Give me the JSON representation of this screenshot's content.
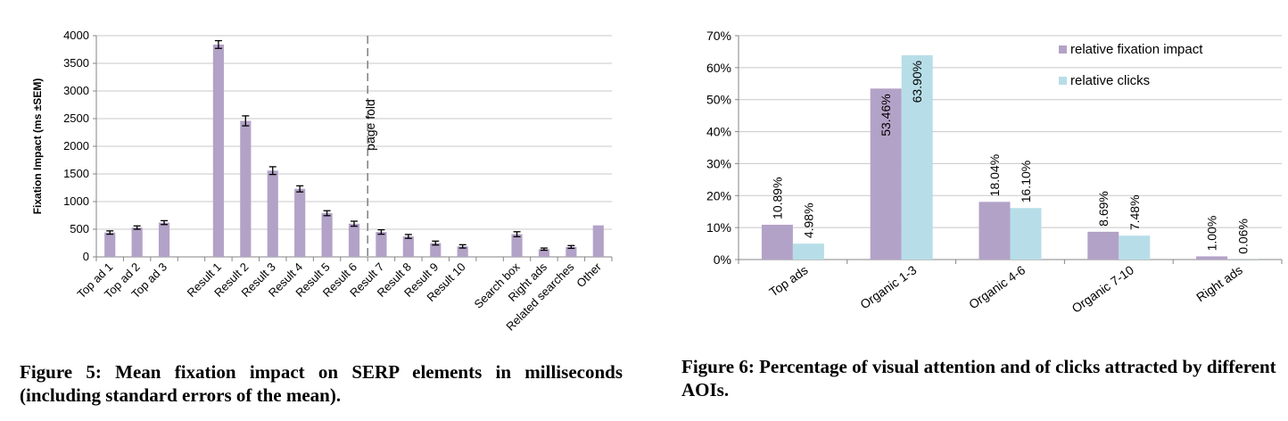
{
  "figures": {
    "fig5_caption": "Figure 5: Mean fixation impact on SERP elements in milliseconds (including standard errors of the mean).",
    "fig6_caption": "Figure 6: Percentage of visual attention and of clicks attracted by different AOIs."
  },
  "chart_data": [
    {
      "type": "bar",
      "ylabel": "Fixation Impact (ms ±SEM)",
      "ylim": [
        0,
        4000
      ],
      "yticks": [
        0,
        500,
        1000,
        1500,
        2000,
        2500,
        3000,
        3500,
        4000
      ],
      "grid": true,
      "categories": [
        "Top ad 1",
        "Top ad 2",
        "Top ad 3",
        "",
        "Result 1",
        "Result 2",
        "Result 3",
        "Result 4",
        "Result 5",
        "Result 6",
        "Result 7",
        "Result 8",
        "Result 9",
        "Result 10",
        "",
        "Search box",
        "Right ads",
        "Related searches",
        "Other"
      ],
      "values": [
        440,
        530,
        620,
        null,
        3840,
        2460,
        1560,
        1230,
        790,
        600,
        450,
        370,
        250,
        190,
        null,
        410,
        140,
        180,
        570
      ],
      "errors": [
        30,
        30,
        35,
        null,
        70,
        90,
        70,
        55,
        45,
        45,
        40,
        35,
        35,
        30,
        null,
        45,
        20,
        25,
        0
      ],
      "annotations": [
        {
          "text": "page fold",
          "between": [
            "Result 6",
            "Result 7"
          ]
        }
      ],
      "colors": {
        "bar": "#b3a2c7",
        "grid": "#c8c8c8",
        "axis": "#868686",
        "fold": "#7f7f7f"
      }
    },
    {
      "type": "bar",
      "ylim": [
        0,
        70
      ],
      "yticks": [
        0,
        10,
        20,
        30,
        40,
        50,
        60,
        70
      ],
      "ytick_suffix": "%",
      "grid": true,
      "legend": "top-right",
      "categories": [
        "Top ads",
        "Organic 1-3",
        "Organic 4-6",
        "Organic 7-10",
        "Right ads"
      ],
      "series": [
        {
          "name": "relative fixation impact",
          "values": [
            10.89,
            53.46,
            18.04,
            8.69,
            1.0
          ],
          "labels": [
            "10.89%",
            "53.46%",
            "18.04%",
            "8.69%",
            "1.00%"
          ],
          "color": "#b3a2c7"
        },
        {
          "name": "relative clicks",
          "values": [
            4.98,
            63.9,
            16.1,
            7.48,
            0.06
          ],
          "labels": [
            "4.98%",
            "63.90%",
            "16.10%",
            "7.48%",
            "0.06%"
          ],
          "color": "#b7dee8"
        }
      ],
      "colors": {
        "grid": "#c8c8c8",
        "axis": "#868686"
      }
    }
  ]
}
